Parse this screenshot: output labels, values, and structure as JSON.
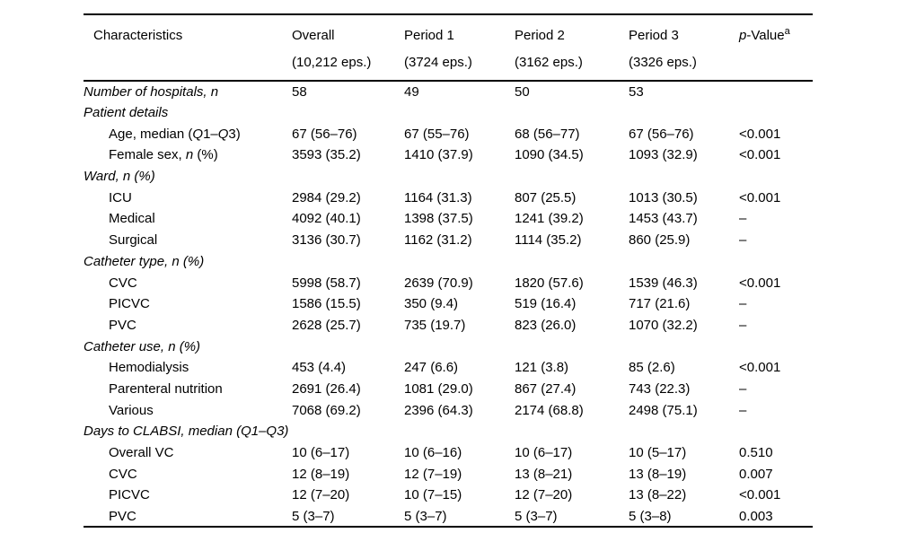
{
  "colors": {
    "text": "#000000",
    "background": "#ffffff",
    "rule": "#000000"
  },
  "table": {
    "header": {
      "characteristics": "Characteristics",
      "columns": [
        {
          "title": "Overall",
          "subtitle": "(10,212 eps.)"
        },
        {
          "title": "Period 1",
          "subtitle": "(3724 eps.)"
        },
        {
          "title": "Period 2",
          "subtitle": "(3162 eps.)"
        },
        {
          "title": "Period 3",
          "subtitle": "(3326 eps.)"
        }
      ],
      "pvalue": {
        "italic": "p",
        "text": "-Value",
        "sup": "a"
      }
    },
    "rows": [
      {
        "indent": 0,
        "label": [
          {
            "t": "Number of hospitals, n",
            "i": true
          }
        ],
        "values": [
          "58",
          "49",
          "50",
          "53",
          ""
        ]
      },
      {
        "indent": 0,
        "label": [
          {
            "t": "Patient details",
            "i": true
          }
        ],
        "values": [
          "",
          "",
          "",
          "",
          ""
        ]
      },
      {
        "indent": 1,
        "label": [
          {
            "t": "Age, median (",
            "i": false
          },
          {
            "t": "Q",
            "i": true
          },
          {
            "t": "1–",
            "i": false
          },
          {
            "t": "Q",
            "i": true
          },
          {
            "t": "3)",
            "i": false
          }
        ],
        "values": [
          "67 (56–76)",
          "67 (55–76)",
          "68 (56–77)",
          "67 (56–76)",
          "<0.001"
        ]
      },
      {
        "indent": 1,
        "label": [
          {
            "t": "Female sex, ",
            "i": false
          },
          {
            "t": "n",
            "i": true
          },
          {
            "t": " (%)",
            "i": false
          }
        ],
        "values": [
          "3593 (35.2)",
          "1410 (37.9)",
          "1090 (34.5)",
          "1093 (32.9)",
          "<0.001"
        ]
      },
      {
        "indent": 0,
        "label": [
          {
            "t": "Ward, n (%)",
            "i": true
          }
        ],
        "values": [
          "",
          "",
          "",
          "",
          ""
        ]
      },
      {
        "indent": 1,
        "label": [
          {
            "t": "ICU",
            "i": false
          }
        ],
        "values": [
          "2984 (29.2)",
          "1164 (31.3)",
          "807 (25.5)",
          "1013 (30.5)",
          "<0.001"
        ]
      },
      {
        "indent": 1,
        "label": [
          {
            "t": "Medical",
            "i": false
          }
        ],
        "values": [
          "4092 (40.1)",
          "1398 (37.5)",
          "1241 (39.2)",
          "1453 (43.7)",
          "–"
        ]
      },
      {
        "indent": 1,
        "label": [
          {
            "t": "Surgical",
            "i": false
          }
        ],
        "values": [
          "3136 (30.7)",
          "1162 (31.2)",
          "1114 (35.2)",
          "860 (25.9)",
          "–"
        ]
      },
      {
        "indent": 0,
        "label": [
          {
            "t": "Catheter type, n (%)",
            "i": true
          }
        ],
        "values": [
          "",
          "",
          "",
          "",
          ""
        ]
      },
      {
        "indent": 1,
        "label": [
          {
            "t": "CVC",
            "i": false
          }
        ],
        "values": [
          "5998 (58.7)",
          "2639 (70.9)",
          "1820 (57.6)",
          "1539 (46.3)",
          "<0.001"
        ]
      },
      {
        "indent": 1,
        "label": [
          {
            "t": "PICVC",
            "i": false
          }
        ],
        "values": [
          "1586 (15.5)",
          "350 (9.4)",
          "519 (16.4)",
          "717 (21.6)",
          "–"
        ]
      },
      {
        "indent": 1,
        "label": [
          {
            "t": "PVC",
            "i": false
          }
        ],
        "values": [
          "2628 (25.7)",
          "735 (19.7)",
          "823 (26.0)",
          "1070 (32.2)",
          "–"
        ]
      },
      {
        "indent": 0,
        "label": [
          {
            "t": "Catheter use, n (%)",
            "i": true
          }
        ],
        "values": [
          "",
          "",
          "",
          "",
          ""
        ]
      },
      {
        "indent": 1,
        "label": [
          {
            "t": "Hemodialysis",
            "i": false
          }
        ],
        "values": [
          "453 (4.4)",
          "247 (6.6)",
          "121 (3.8)",
          "85 (2.6)",
          "<0.001"
        ]
      },
      {
        "indent": 1,
        "label": [
          {
            "t": "Parenteral nutrition",
            "i": false
          }
        ],
        "values": [
          "2691 (26.4)",
          "1081 (29.0)",
          "867 (27.4)",
          "743 (22.3)",
          "–"
        ]
      },
      {
        "indent": 1,
        "label": [
          {
            "t": "Various",
            "i": false
          }
        ],
        "values": [
          "7068 (69.2)",
          "2396 (64.3)",
          "2174 (68.8)",
          "2498 (75.1)",
          "–"
        ]
      },
      {
        "indent": 0,
        "label": [
          {
            "t": "Days to CLABSI, median (Q1–Q3)",
            "i": true
          }
        ],
        "values": [
          "",
          "",
          "",
          "",
          ""
        ]
      },
      {
        "indent": 1,
        "label": [
          {
            "t": "Overall VC",
            "i": false
          }
        ],
        "values": [
          "10 (6–17)",
          "10 (6–16)",
          "10 (6–17)",
          "10 (5–17)",
          "0.510"
        ]
      },
      {
        "indent": 1,
        "label": [
          {
            "t": "CVC",
            "i": false
          }
        ],
        "values": [
          "12 (8–19)",
          "12 (7–19)",
          "13 (8–21)",
          "13 (8–19)",
          "0.007"
        ]
      },
      {
        "indent": 1,
        "label": [
          {
            "t": "PICVC",
            "i": false
          }
        ],
        "values": [
          "12 (7–20)",
          "10 (7–15)",
          "12 (7–20)",
          "13 (8–22)",
          "<0.001"
        ]
      },
      {
        "indent": 1,
        "label": [
          {
            "t": "PVC",
            "i": false
          }
        ],
        "values": [
          "5 (3–7)",
          "5 (3–7)",
          "5 (3–7)",
          "5 (3–8)",
          "0.003"
        ]
      }
    ]
  }
}
